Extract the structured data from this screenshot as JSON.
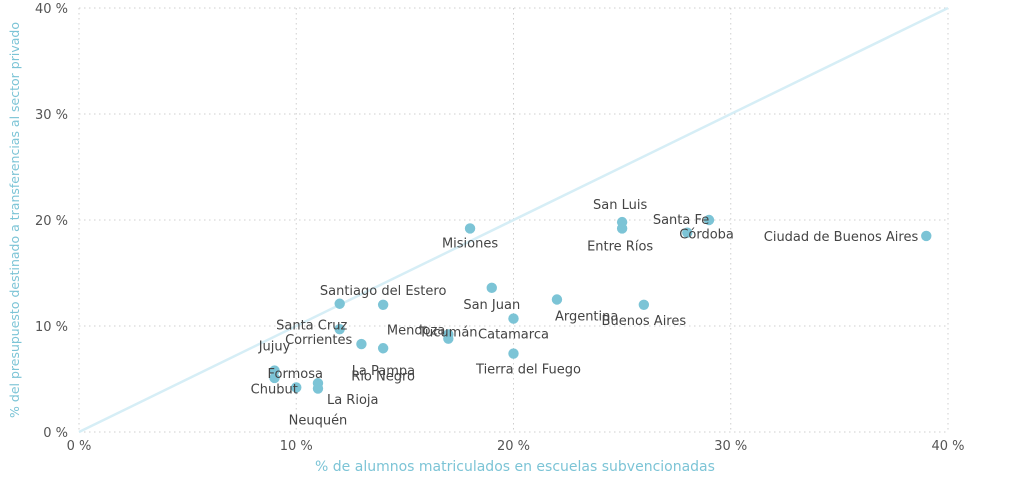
{
  "chart_data": {
    "type": "scatter",
    "title": "",
    "xlabel": "% de alumnos matriculados en escuelas subvencionadas",
    "ylabel": "% del presupuesto destinado a transferencias al sector privado",
    "xlim": [
      0,
      40
    ],
    "ylim": [
      0,
      40
    ],
    "x_ticks": [
      "0 %",
      "10 %",
      "20 %",
      "30 %",
      "40 %"
    ],
    "y_ticks": [
      "0 %",
      "10 %",
      "20 %",
      "30 %",
      "40 %"
    ],
    "grid": true,
    "reference_line": {
      "type": "y=x",
      "color": "#d6eef6"
    },
    "marker_color": "#7cc4d6",
    "points": [
      {
        "label": "Ciudad de Buenos Aires",
        "x": 39,
        "y": 18.5
      },
      {
        "label": "Santa Fe",
        "x": 29,
        "y": 20
      },
      {
        "label": "Córdoba",
        "x": 28,
        "y": 18.8
      },
      {
        "label": "San Luis",
        "x": 25,
        "y": 19.8
      },
      {
        "label": "Entre Ríos",
        "x": 25,
        "y": 19.2
      },
      {
        "label": "Buenos Aires",
        "x": 26,
        "y": 12
      },
      {
        "label": "Argentina",
        "x": 22,
        "y": 12.5
      },
      {
        "label": "Misiones",
        "x": 18,
        "y": 19.2
      },
      {
        "label": "San Juan",
        "x": 19,
        "y": 13.6
      },
      {
        "label": "Catamarca",
        "x": 20,
        "y": 10.7
      },
      {
        "label": "Tucumán",
        "x": 17,
        "y": 9.2
      },
      {
        "label": "Tierra del Fuego",
        "x": 20,
        "y": 7.4
      },
      {
        "label": "Mendoza",
        "x": 17,
        "y": 8.8
      },
      {
        "label": "Santiago del Estero",
        "x": 14,
        "y": 12
      },
      {
        "label": "Santa Cruz",
        "x": 12,
        "y": 12.1
      },
      {
        "label": "Corrientes",
        "x": 12,
        "y": 9.7
      },
      {
        "label": "La Pampa",
        "x": 13,
        "y": 8.3
      },
      {
        "label": "Río Negro",
        "x": 14,
        "y": 7.9
      },
      {
        "label": "La Rioja",
        "x": 11,
        "y": 4.6
      },
      {
        "label": "Neuquén",
        "x": 11,
        "y": 4.1
      },
      {
        "label": "Chubut",
        "x": 10,
        "y": 4.2
      },
      {
        "label": "Jujuy",
        "x": 9,
        "y": 5.8
      },
      {
        "label": "Formosa",
        "x": 9,
        "y": 5.1
      }
    ]
  }
}
